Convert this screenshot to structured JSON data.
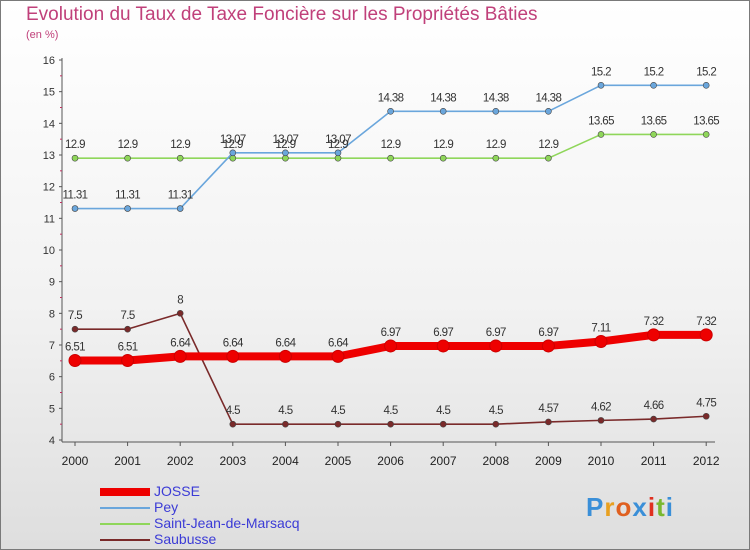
{
  "title": "Evolution du Taux de Taxe Foncière sur les Propriétés Bâties",
  "unit_label": "(en %)",
  "logo": {
    "text": "Proxiti",
    "letters": [
      "P",
      "r",
      "o",
      "x",
      "i",
      "t",
      "i"
    ],
    "colors": [
      "#3a8fd8",
      "#e8a020",
      "#e06020",
      "#3a8fd8",
      "#e03020",
      "#7ab830",
      "#3a8fd8"
    ]
  },
  "chart_data": {
    "type": "line",
    "title": "Evolution du Taux de Taxe Foncière sur les Propriétés Bâties",
    "ylabel": "(en %)",
    "xlabel": "",
    "ylim": [
      4,
      16
    ],
    "yticks": [
      "4",
      "5",
      "6",
      "7",
      "8",
      "9",
      "10",
      "11",
      "12",
      "13",
      "14",
      "15",
      "16"
    ],
    "categories": [
      "2000",
      "2001",
      "2002",
      "2003",
      "2004",
      "2005",
      "2006",
      "2007",
      "2008",
      "2009",
      "2010",
      "2011",
      "2012"
    ],
    "grid": false,
    "series": [
      {
        "name": "JOSSE",
        "color": "#ee0000",
        "values": [
          6.51,
          6.51,
          6.64,
          6.64,
          6.64,
          6.64,
          6.97,
          6.97,
          6.97,
          6.97,
          7.11,
          7.32,
          7.32
        ],
        "labels": [
          "6.51",
          "6.51",
          "6.64",
          "6.64",
          "6.64",
          "6.64",
          "6.97",
          "6.97",
          "6.97",
          "6.97",
          "7.11",
          "7.32",
          "7.32"
        ]
      },
      {
        "name": "Pey",
        "color": "#6aa6dc",
        "values": [
          11.31,
          11.31,
          11.31,
          13.07,
          13.07,
          13.07,
          14.38,
          14.38,
          14.38,
          14.38,
          15.2,
          15.2,
          15.2
        ],
        "labels": [
          "11.31",
          "11.31",
          "11.31",
          "13.07",
          "13.07",
          "13.07",
          "14.38",
          "14.38",
          "14.38",
          "14.38",
          "15.2",
          "15.2",
          "15.2"
        ]
      },
      {
        "name": "Saint-Jean-de-Marsacq",
        "color": "#8fd65a",
        "values": [
          12.9,
          12.9,
          12.9,
          12.9,
          12.9,
          12.9,
          12.9,
          12.9,
          12.9,
          12.9,
          13.65,
          13.65,
          13.65
        ],
        "labels": [
          "12.9",
          "12.9",
          "12.9",
          "12.9",
          "12.9",
          "12.9",
          "12.9",
          "12.9",
          "12.9",
          "12.9",
          "13.65",
          "13.65",
          "13.65"
        ]
      },
      {
        "name": "Saubusse",
        "color": "#7a2a2a",
        "values": [
          7.5,
          7.5,
          8,
          4.5,
          4.5,
          4.5,
          4.5,
          4.5,
          4.5,
          4.57,
          4.62,
          4.66,
          4.75
        ],
        "labels": [
          "7.5",
          "7.5",
          "8",
          "4.5",
          "4.5",
          "4.5",
          "4.5",
          "4.5",
          "4.5",
          "4.57",
          "4.62",
          "4.66",
          "4.75"
        ]
      }
    ]
  },
  "legend": [
    {
      "label": "JOSSE",
      "color": "#ee0000"
    },
    {
      "label": "Pey",
      "color": "#6aa6dc"
    },
    {
      "label": "Saint-Jean-de-Marsacq",
      "color": "#8fd65a"
    },
    {
      "label": "Saubusse",
      "color": "#7a2a2a"
    }
  ]
}
